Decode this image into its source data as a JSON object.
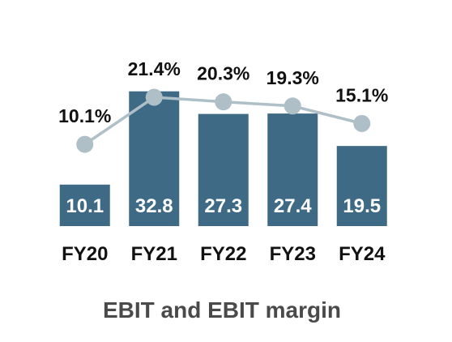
{
  "chart_data": {
    "type": "bar",
    "title": "EBIT and EBIT margin",
    "categories": [
      "FY20",
      "FY21",
      "FY22",
      "FY23",
      "FY24"
    ],
    "series": [
      {
        "values": [
          10.1,
          32.8,
          27.3,
          27.4,
          19.5
        ],
        "kind": "bar"
      },
      {
        "values": [
          10.1,
          21.4,
          20.3,
          19.3,
          15.1
        ],
        "kind": "line"
      }
    ],
    "bar_labels": [
      "10.1",
      "32.8",
      "27.3",
      "27.4",
      "19.5"
    ],
    "line_labels": [
      "10.1%",
      "21.4%",
      "20.3%",
      "19.3%",
      "15.1%"
    ],
    "colors": {
      "bar": "#3f6a86",
      "line": "#aebfc8"
    },
    "grid": false,
    "legend": "none"
  }
}
